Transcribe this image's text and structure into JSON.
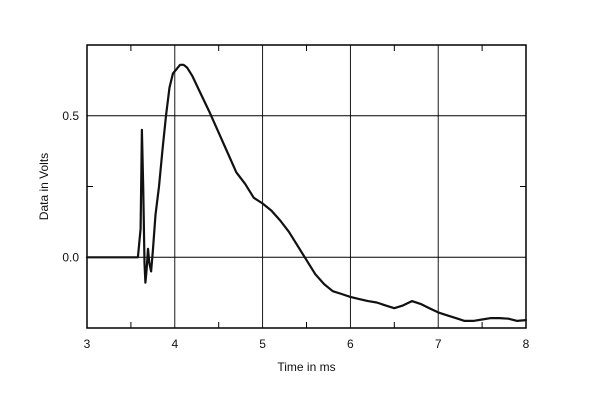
{
  "chart_data": {
    "type": "line",
    "title": "",
    "xlabel": "Time in ms",
    "ylabel": "Data in Volts",
    "xlim": [
      3,
      8
    ],
    "ylim": [
      -0.25,
      0.75
    ],
    "xticks": [
      "3",
      "4",
      "5",
      "6",
      "7",
      "8"
    ],
    "yticks": [
      "0.0",
      "0.5"
    ],
    "grid": true,
    "series": [
      {
        "points": [
          [
            3.0,
            0.0
          ],
          [
            3.3,
            0.0
          ],
          [
            3.55,
            0.0
          ],
          [
            3.58,
            0.0
          ],
          [
            3.61,
            0.1
          ],
          [
            3.625,
            0.45
          ],
          [
            3.64,
            0.25
          ],
          [
            3.655,
            -0.02
          ],
          [
            3.665,
            -0.09
          ],
          [
            3.68,
            -0.04
          ],
          [
            3.695,
            0.03
          ],
          [
            3.71,
            -0.02
          ],
          [
            3.73,
            -0.05
          ],
          [
            3.75,
            0.02
          ],
          [
            3.78,
            0.15
          ],
          [
            3.82,
            0.25
          ],
          [
            3.86,
            0.38
          ],
          [
            3.9,
            0.5
          ],
          [
            3.94,
            0.6
          ],
          [
            3.98,
            0.65
          ],
          [
            4.02,
            0.665
          ],
          [
            4.06,
            0.68
          ],
          [
            4.1,
            0.68
          ],
          [
            4.14,
            0.67
          ],
          [
            4.2,
            0.64
          ],
          [
            4.3,
            0.575
          ],
          [
            4.4,
            0.51
          ],
          [
            4.5,
            0.44
          ],
          [
            4.6,
            0.37
          ],
          [
            4.7,
            0.3
          ],
          [
            4.8,
            0.26
          ],
          [
            4.9,
            0.21
          ],
          [
            5.0,
            0.19
          ],
          [
            5.1,
            0.165
          ],
          [
            5.2,
            0.13
          ],
          [
            5.3,
            0.09
          ],
          [
            5.4,
            0.04
          ],
          [
            5.5,
            -0.01
          ],
          [
            5.6,
            -0.06
          ],
          [
            5.7,
            -0.095
          ],
          [
            5.8,
            -0.12
          ],
          [
            5.9,
            -0.13
          ],
          [
            6.0,
            -0.14
          ],
          [
            6.1,
            -0.148
          ],
          [
            6.2,
            -0.155
          ],
          [
            6.3,
            -0.16
          ],
          [
            6.4,
            -0.17
          ],
          [
            6.5,
            -0.18
          ],
          [
            6.55,
            -0.175
          ],
          [
            6.6,
            -0.17
          ],
          [
            6.7,
            -0.155
          ],
          [
            6.8,
            -0.165
          ],
          [
            6.9,
            -0.18
          ],
          [
            7.0,
            -0.195
          ],
          [
            7.1,
            -0.205
          ],
          [
            7.2,
            -0.215
          ],
          [
            7.3,
            -0.225
          ],
          [
            7.4,
            -0.225
          ],
          [
            7.5,
            -0.22
          ],
          [
            7.6,
            -0.215
          ],
          [
            7.7,
            -0.215
          ],
          [
            7.8,
            -0.217
          ],
          [
            7.9,
            -0.225
          ],
          [
            8.0,
            -0.222
          ]
        ]
      }
    ]
  }
}
